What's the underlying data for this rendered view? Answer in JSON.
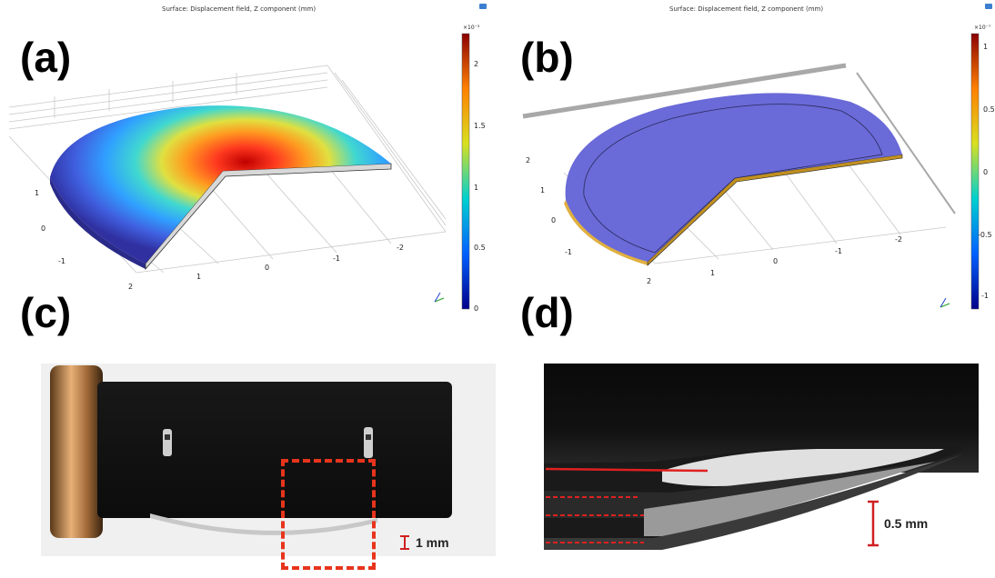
{
  "panels": {
    "a": {
      "label": "(a)",
      "title": "Surface: Displacement field, Z component (mm)",
      "colorbar_exponent": "×10⁻³",
      "colorbar_ticks": [
        "2",
        "1.5",
        "1",
        "0.5",
        "0"
      ],
      "axis_ticks_x": [
        "2",
        "1",
        "0",
        "-1",
        "-2"
      ],
      "axis_ticks_y": [
        "1",
        "0",
        "-1"
      ]
    },
    "b": {
      "label": "(b)",
      "title": "Surface: Displacement field, Z component (mm)",
      "colorbar_exponent": "×10⁻⁷",
      "colorbar_ticks": [
        "1",
        "0.5",
        "0",
        "-0.5",
        "-1"
      ],
      "axis_ticks_x": [
        "2",
        "1",
        "0",
        "-1",
        "-2"
      ],
      "axis_ticks_y": [
        "2",
        "1",
        "0",
        "-1"
      ]
    },
    "c": {
      "label": "(c)",
      "scale_bar": "1 mm"
    },
    "d": {
      "label": "(d)",
      "scale_bar": "0.5 mm"
    }
  },
  "colors": {
    "accent_red": "#e8341c",
    "colormap": [
      "#00008b",
      "#0060ff",
      "#00d0d0",
      "#d8e020",
      "#ff8000",
      "#c00000"
    ]
  }
}
